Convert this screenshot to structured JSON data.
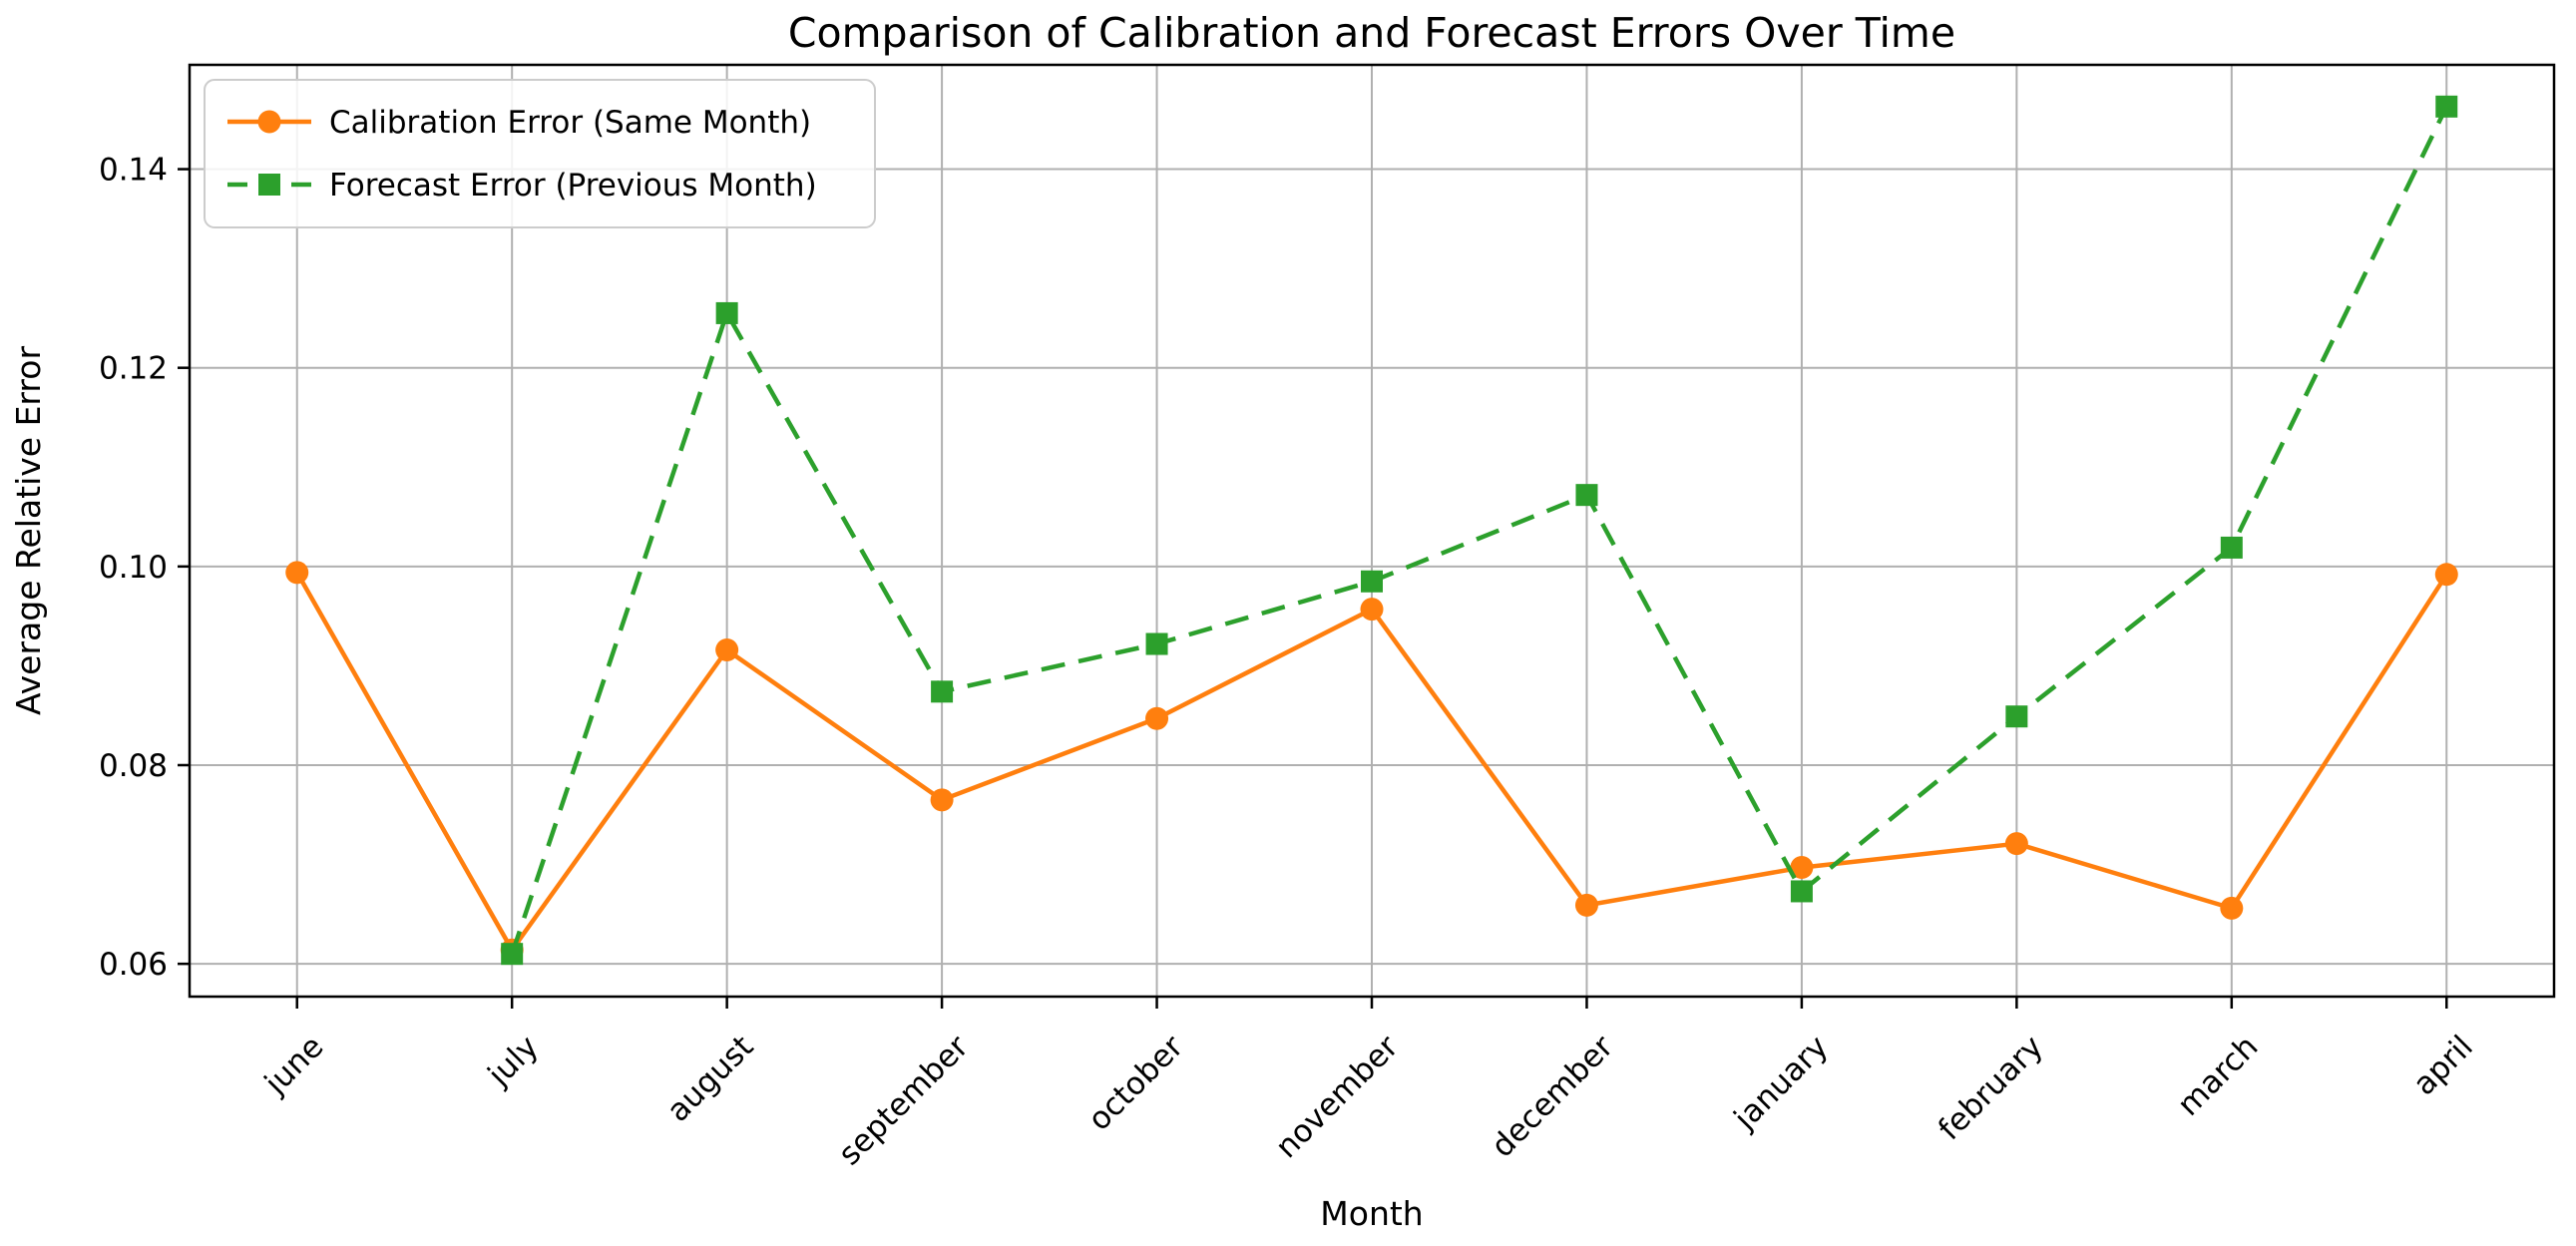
{
  "figure": {
    "background": "#ffffff"
  },
  "chart_data": {
    "type": "line",
    "title": "Comparison of Calibration and Forecast Errors Over Time",
    "xlabel": "Month",
    "ylabel": "Average Relative Error",
    "categories": [
      "june",
      "july",
      "august",
      "september",
      "october",
      "november",
      "december",
      "january",
      "february",
      "march",
      "april"
    ],
    "series": [
      {
        "name": "Calibration Error (Same Month)",
        "color": "#ff7f0e",
        "line_style": "solid",
        "marker": "circle",
        "values": [
          0.0994,
          0.0614,
          0.0916,
          0.0765,
          0.0847,
          0.0957,
          0.0659,
          0.0697,
          0.0721,
          0.0656,
          0.0992
        ]
      },
      {
        "name": "Forecast Error (Previous Month)",
        "color": "#2ca02c",
        "line_style": "dashed",
        "marker": "square",
        "values": [
          null,
          0.061,
          0.1255,
          0.0874,
          0.0922,
          0.0985,
          0.1072,
          0.0673,
          0.0849,
          0.1019,
          0.1463
        ]
      }
    ],
    "ylim": [
      0.0567,
      0.1505
    ],
    "yticks": [
      "0.06",
      "0.08",
      "0.10",
      "0.12",
      "0.14"
    ],
    "grid": true,
    "grid_color": "#b0b0b0",
    "axis_color": "#000000",
    "legend_position": "upper left"
  }
}
